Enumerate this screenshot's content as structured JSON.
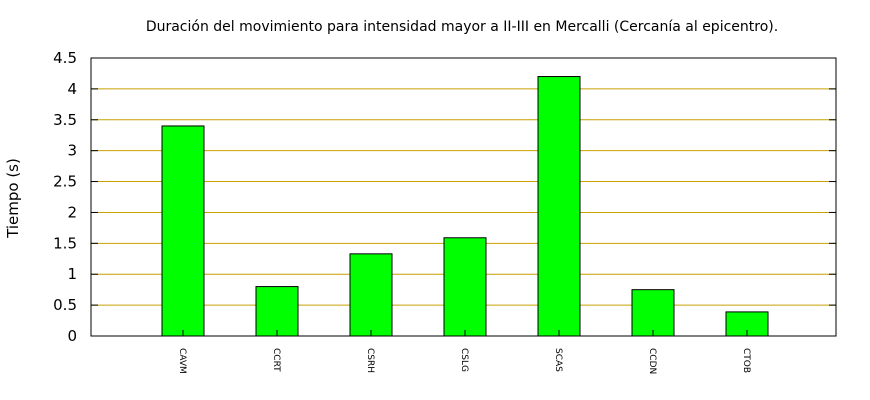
{
  "chart_data": {
    "type": "bar",
    "title": "Duración del movimiento para intensidad mayor a II-III en Mercalli (Cercanía al epicentro).",
    "xlabel": "",
    "ylabel": "Tiempo (s)",
    "categories": [
      "CAVM",
      "CCRT",
      "CSRH",
      "CSLG",
      "SCAS",
      "CCDN",
      "CTOB"
    ],
    "values": [
      3.4,
      0.8,
      1.33,
      1.59,
      4.2,
      0.75,
      0.39
    ],
    "ylim": [
      0,
      4.5
    ],
    "yticks": [
      "0",
      "0.5",
      "1",
      "1.5",
      "2",
      "2.5",
      "3",
      "3.5",
      "4",
      "4.5"
    ],
    "grid": true,
    "legend": "none",
    "colors": {
      "bar_fill": "#00ff00",
      "bar_stroke": "#000000",
      "grid": "#c8a000",
      "axis": "#000000"
    }
  }
}
